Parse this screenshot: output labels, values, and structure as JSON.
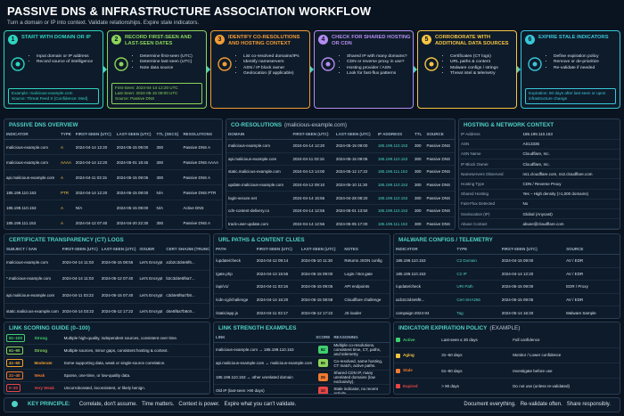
{
  "header": {
    "title": "PASSIVE DNS & INFRASTRUCTURE ASSOCIATION WORKFLOW",
    "subtitle": "Turn a domain or IP into context. Validate relationships. Expire stale indicators."
  },
  "steps": [
    {
      "number": 1,
      "title": "START WITH DOMAIN OR IP",
      "bullets": [
        "Input domain or IP address",
        "Record source of intelligence"
      ],
      "note": [
        "Example: malicious-example.com",
        "Source: Threat Feed X (Confidence: Med)"
      ]
    },
    {
      "number": 2,
      "title": "RECORD FIRST-SEEN AND LAST-SEEN DATES",
      "bullets": [
        "Determine first-seen (UTC)",
        "Determine last-seen (UTC)",
        "Note data source"
      ],
      "note": [
        "First-Seen: 2024-04-14 12:20 UTC",
        "Last-Seen: 2024-05-15 09:00 UTC",
        "Source: Passive DNS"
      ]
    },
    {
      "number": 3,
      "title": "IDENTIFY CO-RESOLUTIONS AND HOSTING CONTEXT",
      "bullets": [
        "List co-resolved domains/IPs",
        "Identify nameservers",
        "ASN / IP block owner",
        "Geolocation (if applicable)"
      ]
    },
    {
      "number": 4,
      "title": "CHECK FOR SHARED HOSTING OR CDN",
      "bullets": [
        "Shared IP with many domains?",
        "CDN or reverse proxy in use?",
        "Hosting provider / ASN",
        "Look for fast-flux patterns"
      ]
    },
    {
      "number": 5,
      "title": "CORROBORATE WITH ADDITIONAL DATA SOURCES",
      "bullets": [
        "Certificates (CT logs)",
        "URL paths & content",
        "Malware configs / strings",
        "Threat intel & telemetry"
      ]
    },
    {
      "number": 6,
      "title": "EXPIRE STALE INDICATORS",
      "bullets": [
        "Define expiration policy",
        "Remove or de-prioritize",
        "Re-validate if needed"
      ],
      "note": [
        "Expiration: 60 days after last-seen or upon infrastructure change"
      ]
    }
  ],
  "passive_dns": {
    "title": "PASSIVE DNS OVERVIEW",
    "columns": [
      "INDICATOR",
      "TYPE",
      "FIRST-SEEN (UTC)",
      "LAST-SEEN (UTC)",
      "TTL (SECS)",
      "RESOLUTIONS"
    ],
    "rows": [
      [
        "malicious-example.com",
        "A",
        "2024-04-14 12:20",
        "2024-05-15 09:00",
        "300",
        "Passive DNS A"
      ],
      [
        "malicious-example.com",
        "AAAA",
        "2024-04-14 12:20",
        "2024-05-01 18:45",
        "300",
        "Passive DNS AAAA"
      ],
      [
        "api.malicious-example.com",
        "A",
        "2024-04-11 03:15",
        "2024-05-15 09:05",
        "300",
        "Passive DNS A"
      ],
      [
        "185.199.110.153",
        "PTR",
        "2024-04-14 12:20",
        "2024-05-15 09:00",
        "N/A",
        "Passive DNS PTR"
      ],
      [
        "185.199.110.153",
        "A",
        "N/A",
        "2024-05-15 09:00",
        "N/A",
        "Active DNS"
      ],
      [
        "185.199.111.153",
        "A",
        "2024-04-12 07:40",
        "2024-04-20 22:30",
        "300",
        "Passive DNS A"
      ]
    ]
  },
  "co_resolutions": {
    "title": "CO-RESOLUTIONS",
    "subtitle": "(malicious-example.com)",
    "columns": [
      "DOMAIN",
      "FIRST-SEEN (UTC)",
      "LAST-SEEN (UTC)",
      "IP ADDRESS",
      "TTL",
      "SOURCE"
    ],
    "rows": [
      [
        "malicious-example.com",
        "2024-04-14 12:20",
        "2024-05-15 09:00",
        "185.199.110.153",
        "300",
        "Passive DNS"
      ],
      [
        "api.malicious-example.com",
        "2024-04-11 03:15",
        "2024-05-15 09:05",
        "185.199.110.153",
        "300",
        "Passive DNS"
      ],
      [
        "static.malicious-example.com",
        "2024-04-13 14:00",
        "2024-05-12 17:22",
        "185.199.111.153",
        "300",
        "Passive DNS"
      ],
      [
        "update.malicious-example.com",
        "2024-04-12 09:10",
        "2024-05-10 11:30",
        "185.199.110.153",
        "300",
        "Passive DNS"
      ],
      [
        "login-secure.net",
        "2024-04-14 15:55",
        "2024-04-28 08:20",
        "185.199.110.153",
        "300",
        "Passive DNS"
      ],
      [
        "cdn-content-delivery.co",
        "2024-04-14 12:55",
        "2024-05-01 13:50",
        "185.199.110.153",
        "300",
        "Passive DNS"
      ],
      [
        "track-user-update.com",
        "2024-04-14 12:56",
        "2024-05-05 17:00",
        "185.199.111.153",
        "300",
        "Passive DNS"
      ]
    ]
  },
  "hosting": {
    "title": "HOSTING & NETWORK CONTEXT",
    "rows": [
      [
        "IP Address",
        "185.199.110.153"
      ],
      [
        "ASN",
        "AS13335"
      ],
      [
        "ASN Name",
        "Cloudflare, Inc."
      ],
      [
        "IP Block Owner",
        "Cloudflare, Inc."
      ],
      [
        "Nameservers Observed",
        "ns1.cloudflare.com, ns2.cloudflare.com"
      ],
      [
        "Hosting Type",
        "CDN / Reverse Proxy"
      ],
      [
        "Shared Hosting",
        "Yes – High density (>1,000 domains)"
      ],
      [
        "Fast-Flux Detected",
        "No"
      ],
      [
        "Geolocation (IP)",
        "Global (Anycast)"
      ],
      [
        "Abuse Contact",
        "abuse@cloudflare.com"
      ]
    ]
  },
  "ct_logs": {
    "title": "CERTIFICATE TRANSPARENCY (CT) LOGS",
    "columns": [
      "SUBJECT / SAN",
      "FIRST-SEEN (UTC)",
      "LAST-SEEN (UTC)",
      "ISSUER",
      "CERT SHA256 (TRUNC)"
    ],
    "rows": [
      [
        "malicious-example.com",
        "2024-04-14 11:03",
        "2024-05-15 08:55",
        "Let's Encrypt",
        "a1b2c3d4e5f6..."
      ],
      [
        "*.malicious-example.com",
        "2024-04-14 11:03",
        "2024-05-12 07:40",
        "Let's Encrypt",
        "b2c3d4e5f6a7..."
      ],
      [
        "api.malicious-example.com",
        "2024-04-11 03:22",
        "2024-05-15 07:40",
        "Let's Encrypt",
        "c3d4e5f6a7b8..."
      ],
      [
        "static.malicious-example.com",
        "2024-04-14 03:22",
        "2024-05-12 17:22",
        "Let's Encrypt",
        "d4e5f6a7b8c9..."
      ]
    ]
  },
  "url_paths": {
    "title": "URL PATHS & CONTENT CLUES",
    "columns": [
      "PATH",
      "FIRST-SEEN (UTC)",
      "LAST-SEEN (UTC)",
      "NOTES"
    ],
    "rows": [
      [
        "/update/check",
        "2024-04-12 09:14",
        "2024-05-10 11:30",
        "Returns JSON config"
      ],
      [
        "/gate.php",
        "2024-04-13 15:55",
        "2024-05-15 09:00",
        "Login / Bot gate"
      ],
      [
        "/api/v1/",
        "2024-04-11 03:16",
        "2024-05-15 09:05",
        "API endpoints"
      ],
      [
        "/cdn-cgi/challenge",
        "2024-04-14 16:20",
        "2024-05-15 08:58",
        "Cloudflare challenge"
      ],
      [
        "/static/app.js",
        "2024-04-11 03:17",
        "2024-05-12 17:22",
        "JS loader"
      ]
    ]
  },
  "malware": {
    "title": "MALWARE CONFIGS / TELEMETRY",
    "columns": [
      "INDICATOR",
      "TYPE",
      "FIRST-SEEN (UTC)",
      "SOURCE"
    ],
    "rows": [
      [
        "185.199.110.153",
        "C2 Domain",
        "2024-04-15 09:00",
        "AV / EDR"
      ],
      [
        "185.199.110.153",
        "C2 IP",
        "2024-04-14 12:20",
        "AV / EDR"
      ],
      [
        "/update/check",
        "URI Path",
        "2024-05-15 09:00",
        "EDR / Proxy"
      ],
      [
        "a1b2c3d4e5f6...",
        "Cert SHA256",
        "2024-05-15 09:05",
        "AV / EDR"
      ],
      [
        "campaign-2024-04",
        "Tag",
        "2024-05-14 16:20",
        "Malware Sample"
      ]
    ]
  },
  "link_scoring": {
    "title": "LINK SCORING GUIDE (0–100)",
    "rows": [
      [
        "91–100",
        "Strong",
        "Multiple high-quality, independent sources, consistent over time."
      ],
      [
        "61–90",
        "Strong",
        "Multiple sources, minor gaps, consistent hosting & context."
      ],
      [
        "41–60",
        "Moderate",
        "Some supporting data, weak or single-source correlation."
      ],
      [
        "21–40",
        "Weak",
        "Sparse, one-time, or low-quality data."
      ],
      [
        "0–20",
        "Very Weak",
        "Uncorroborated, inconsistent, or likely benign."
      ]
    ]
  },
  "link_strength": {
    "title": "LINK STRENGTH EXAMPLES",
    "columns": [
      "LINK",
      "SCORE",
      "REASONING"
    ],
    "rows": [
      [
        "malicious-example.com → 185.199.110.153",
        92,
        "Multiple co-resolutions, consistent time, CT, paths, and telemetry."
      ],
      [
        "api.malicious-example.com ↔ malicious-example.com",
        85,
        "Co-resolved, same hosting, CT match, active paths."
      ],
      [
        "185.199.110.153 ↔ other unrelated domain",
        25,
        "Shared CDN IP, many unrelated domains (low exclusivity)."
      ],
      [
        "Old IP (last-seen >90 days)",
        10,
        "Stale indicator, no recent activity."
      ]
    ]
  },
  "expiration": {
    "title": "INDICATOR EXPIRATION POLICY",
    "subtitle": "(EXAMPLE)",
    "rows": [
      [
        "Active",
        "Last-seen ≤ 30 days",
        "Full confidence"
      ],
      [
        "Aging",
        "31–60 days",
        "Monitor / Lower confidence"
      ],
      [
        "Stale",
        "61–90 days",
        "Investigate before use"
      ],
      [
        "Expired",
        "> 90 days",
        "Do not use (unless re-validated)"
      ]
    ]
  },
  "footer": {
    "label": "KEY PRINCIPLE:",
    "principle": "Correlate, don't assume.   Time matters.   Context is power.   Expire what you can't validate.",
    "right": "Document everything.   Re-validate often.   Share responsibly."
  }
}
